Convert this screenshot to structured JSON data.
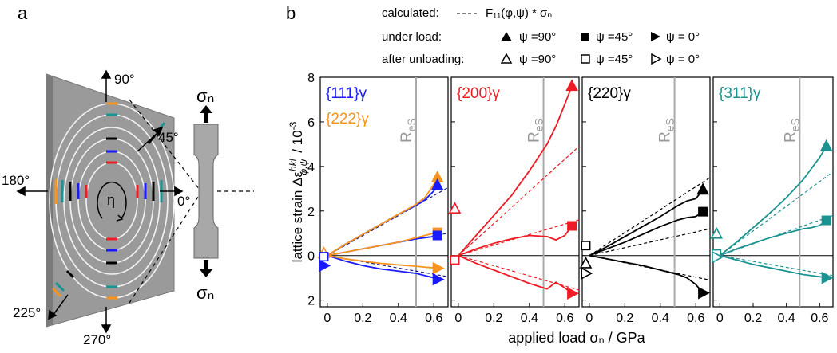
{
  "figure": {
    "label_a": "a",
    "label_b": "b",
    "legend": {
      "calculated": "calculated:",
      "formula": "F₁₁(φ,ψ) * σₙ",
      "under_load": "under load:",
      "after_unloading": "after unloading:",
      "psi90": "ψ =90°",
      "psi45": "ψ =45°",
      "psi0": "ψ = 0°"
    },
    "ylabel": {
      "text": "lattice strain Δε",
      "sup": "hkl",
      "sub": "φ,ψ",
      "unit": "/ 10",
      "unit_sup": "-3"
    },
    "xlabel": "applied load σₙ / GPa"
  },
  "diagram": {
    "angle_90": "90°",
    "angle_45": "45°",
    "angle_180": "180°",
    "angle_0": "0°",
    "angle_225": "225°",
    "angle_270": "270°",
    "eta": "η",
    "sigma_top": "σₙ",
    "sigma_bottom": "σₙ"
  },
  "chart_data": [
    {
      "type": "line",
      "titles": [
        {
          "text": "{111}γ",
          "color": "#1a1aff"
        },
        {
          "text": "{222}γ",
          "color": "#f7941d"
        }
      ],
      "x": [
        0,
        0.1,
        0.2,
        0.3,
        0.4,
        0.5,
        0.55,
        0.6,
        0.62
      ],
      "series": [
        {
          "color": "#1a1aff",
          "values": [
            0,
            0.5,
            0.95,
            1.4,
            1.85,
            2.25,
            2.5,
            2.9,
            3.15
          ]
        },
        {
          "color": "#f7941d",
          "values": [
            0,
            0.5,
            0.95,
            1.4,
            1.85,
            2.3,
            2.6,
            3.2,
            3.5
          ]
        },
        {
          "color": "#1a1aff",
          "values": [
            0,
            0.15,
            0.3,
            0.45,
            0.6,
            0.75,
            0.8,
            0.85,
            0.9
          ]
        },
        {
          "color": "#f7941d",
          "values": [
            0,
            0.15,
            0.3,
            0.45,
            0.6,
            0.8,
            0.9,
            1.0,
            1.04
          ]
        },
        {
          "color": "#1a1aff",
          "values": [
            0,
            -0.25,
            -0.45,
            -0.6,
            -0.7,
            -0.8,
            -0.9,
            -1.0,
            -1.07
          ]
        },
        {
          "color": "#f7941d",
          "values": [
            0,
            -0.15,
            -0.25,
            -0.35,
            -0.42,
            -0.48,
            -0.52,
            -0.55,
            -0.57
          ]
        }
      ],
      "calculated": [
        {
          "color": "#1a1a8c",
          "x": [
            0,
            0.68
          ],
          "values": [
            0,
            3.05
          ]
        },
        {
          "color": "#1a1a8c",
          "x": [
            0,
            0.68
          ],
          "values": [
            0,
            1.0
          ]
        },
        {
          "color": "#1a1a8c",
          "x": [
            0,
            0.68
          ],
          "values": [
            0,
            -0.95
          ]
        }
      ],
      "markers": [
        {
          "color": "#f7941d",
          "shape": "up",
          "filled": true,
          "x": 0.62,
          "y": 3.5
        },
        {
          "color": "#1a1aff",
          "shape": "up",
          "filled": true,
          "x": 0.62,
          "y": 3.15
        },
        {
          "color": "#f7941d",
          "shape": "square",
          "filled": true,
          "x": 0.62,
          "y": 1.04
        },
        {
          "color": "#1a1aff",
          "shape": "square",
          "filled": true,
          "x": 0.62,
          "y": 0.9
        },
        {
          "color": "#f7941d",
          "shape": "right",
          "filled": true,
          "x": 0.62,
          "y": -0.57
        },
        {
          "color": "#1a1aff",
          "shape": "right",
          "filled": true,
          "x": 0.62,
          "y": -1.07
        },
        {
          "color": "#f7941d",
          "shape": "up",
          "filled": false,
          "x": -0.02,
          "y": 0.1
        },
        {
          "color": "#1a1aff",
          "shape": "square",
          "filled": false,
          "x": -0.02,
          "y": -0.05
        },
        {
          "color": "#1a1aff",
          "shape": "right",
          "filled": true,
          "x": -0.02,
          "y": -0.45
        }
      ],
      "reference_line": {
        "x": 0.5,
        "label": "R",
        "label_sub": "eS"
      },
      "xlim": [
        -0.04,
        0.68
      ],
      "xticks": [
        0,
        0.2,
        0.4,
        0.6
      ],
      "ylim": [
        -2.3,
        8
      ],
      "yticks": [
        8,
        6,
        4,
        2,
        0,
        {
          "value": -2,
          "label": "2"
        }
      ]
    },
    {
      "type": "line",
      "titles": [
        {
          "text": "{200}γ",
          "color": "#ee1c25"
        }
      ],
      "x": [
        0,
        0.1,
        0.2,
        0.3,
        0.4,
        0.5,
        0.55,
        0.6,
        0.64
      ],
      "series": [
        {
          "color": "#ee1c25",
          "values": [
            0,
            0.9,
            1.8,
            2.7,
            3.8,
            5.0,
            5.8,
            6.8,
            7.6
          ]
        },
        {
          "color": "#ee1c25",
          "values": [
            0,
            0.3,
            0.55,
            0.75,
            0.9,
            0.85,
            0.7,
            0.9,
            1.33
          ]
        },
        {
          "color": "#ee1c25",
          "values": [
            0,
            -0.35,
            -0.65,
            -0.95,
            -1.25,
            -1.5,
            -1.2,
            -1.45,
            -1.7
          ]
        }
      ],
      "calculated": [
        {
          "color": "#ee1c25",
          "x": [
            0,
            0.68
          ],
          "values": [
            0,
            4.9
          ]
        },
        {
          "color": "#ee1c25",
          "x": [
            0,
            0.68
          ],
          "values": [
            0,
            1.6
          ]
        },
        {
          "color": "#ee1c25",
          "x": [
            0,
            0.68
          ],
          "values": [
            0,
            -1.55
          ]
        }
      ],
      "markers": [
        {
          "color": "#ee1c25",
          "shape": "up",
          "filled": true,
          "x": 0.64,
          "y": 7.6
        },
        {
          "color": "#ee1c25",
          "shape": "square",
          "filled": true,
          "x": 0.64,
          "y": 1.33
        },
        {
          "color": "#ee1c25",
          "shape": "right",
          "filled": true,
          "x": 0.64,
          "y": -1.7
        },
        {
          "color": "#ee1c25",
          "shape": "up",
          "filled": false,
          "x": -0.02,
          "y": 2.1
        },
        {
          "color": "#ee1c25",
          "shape": "square",
          "filled": false,
          "x": -0.02,
          "y": -0.2
        }
      ],
      "reference_line": {
        "x": 0.48,
        "label": "R",
        "label_sub": "eS"
      },
      "xlim": [
        -0.04,
        0.68
      ],
      "xticks": [
        0,
        0.2,
        0.4,
        0.6
      ],
      "ylim": [
        -2.3,
        8
      ],
      "yticks": [
        8,
        6,
        4,
        2,
        0,
        {
          "value": -2,
          "label": "2"
        }
      ]
    },
    {
      "type": "line",
      "titles": [
        {
          "text": "{220}γ",
          "color": "#000000"
        }
      ],
      "x": [
        0,
        0.1,
        0.2,
        0.3,
        0.4,
        0.5,
        0.55,
        0.6,
        0.64
      ],
      "series": [
        {
          "color": "#000000",
          "values": [
            0,
            0.4,
            0.85,
            1.3,
            1.75,
            2.25,
            2.45,
            2.55,
            2.95
          ]
        },
        {
          "color": "#000000",
          "values": [
            0,
            0.3,
            0.6,
            0.95,
            1.3,
            1.6,
            1.7,
            1.75,
            1.97
          ]
        },
        {
          "color": "#000000",
          "values": [
            0,
            -0.15,
            -0.3,
            -0.45,
            -0.65,
            -0.85,
            -1.0,
            -1.3,
            -1.68
          ]
        }
      ],
      "calculated": [
        {
          "color": "#000000",
          "x": [
            0,
            0.68
          ],
          "values": [
            0,
            3.5
          ]
        },
        {
          "color": "#000000",
          "x": [
            0,
            0.68
          ],
          "values": [
            0,
            1.2
          ]
        },
        {
          "color": "#000000",
          "x": [
            0,
            0.68
          ],
          "values": [
            0,
            -1.1
          ]
        }
      ],
      "markers": [
        {
          "color": "#000000",
          "shape": "up",
          "filled": true,
          "x": 0.64,
          "y": 2.95
        },
        {
          "color": "#000000",
          "shape": "square",
          "filled": true,
          "x": 0.64,
          "y": 1.97
        },
        {
          "color": "#000000",
          "shape": "right",
          "filled": true,
          "x": 0.64,
          "y": -1.68
        },
        {
          "color": "#000000",
          "shape": "square",
          "filled": false,
          "x": -0.02,
          "y": 0.45
        },
        {
          "color": "#000000",
          "shape": "up",
          "filled": false,
          "x": -0.02,
          "y": -0.36
        },
        {
          "color": "#000000",
          "shape": "right",
          "filled": false,
          "x": -0.02,
          "y": -0.8
        }
      ],
      "reference_line": {
        "x": 0.48,
        "label": "R",
        "label_sub": "eS"
      },
      "xlim": [
        -0.04,
        0.68
      ],
      "xticks": [
        0,
        0.2,
        0.4,
        0.6
      ],
      "ylim": [
        -2.3,
        8
      ],
      "yticks": [
        8,
        6,
        4,
        2,
        0,
        {
          "value": -2,
          "label": "2"
        }
      ]
    },
    {
      "type": "line",
      "titles": [
        {
          "text": "{311}γ",
          "color": "#1a9391"
        }
      ],
      "x": [
        0,
        0.1,
        0.2,
        0.3,
        0.4,
        0.5,
        0.55,
        0.6,
        0.64
      ],
      "series": [
        {
          "color": "#1a9391",
          "values": [
            0,
            0.6,
            1.25,
            1.9,
            2.6,
            3.4,
            3.9,
            4.4,
            4.9
          ]
        },
        {
          "color": "#1a9391",
          "values": [
            0,
            0.3,
            0.55,
            0.8,
            1.0,
            1.2,
            1.25,
            1.35,
            1.58
          ]
        },
        {
          "color": "#1a9391",
          "values": [
            0,
            -0.2,
            -0.4,
            -0.55,
            -0.7,
            -0.85,
            -0.9,
            -0.95,
            -1.0
          ]
        }
      ],
      "calculated": [
        {
          "color": "#1a9391",
          "x": [
            0,
            0.68
          ],
          "values": [
            0,
            3.76
          ]
        },
        {
          "color": "#1a9391",
          "x": [
            0,
            0.68
          ],
          "values": [
            0,
            1.8
          ]
        },
        {
          "color": "#1a9391",
          "x": [
            0,
            0.68
          ],
          "values": [
            0,
            -0.9
          ]
        }
      ],
      "markers": [
        {
          "color": "#1a9391",
          "shape": "up",
          "filled": true,
          "x": 0.64,
          "y": 4.9
        },
        {
          "color": "#1a9391",
          "shape": "square",
          "filled": true,
          "x": 0.64,
          "y": 1.58
        },
        {
          "color": "#1a9391",
          "shape": "right",
          "filled": true,
          "x": 0.64,
          "y": -1.0
        },
        {
          "color": "#1a9391",
          "shape": "up",
          "filled": false,
          "x": -0.02,
          "y": 0.97
        },
        {
          "color": "#1a9391",
          "shape": "square",
          "filled": false,
          "x": -0.02,
          "y": 0.07
        },
        {
          "color": "#1a9391",
          "shape": "right",
          "filled": false,
          "x": -0.02,
          "y": -0.07
        }
      ],
      "reference_line": {
        "x": 0.48,
        "label": "R",
        "label_sub": "eS"
      },
      "xlim": [
        -0.04,
        0.68
      ],
      "xticks": [
        0,
        0.2,
        0.4,
        0.6
      ],
      "ylim": [
        -2.3,
        8
      ],
      "yticks": [
        8,
        6,
        4,
        2,
        0,
        {
          "value": -2,
          "label": "2"
        }
      ]
    }
  ]
}
